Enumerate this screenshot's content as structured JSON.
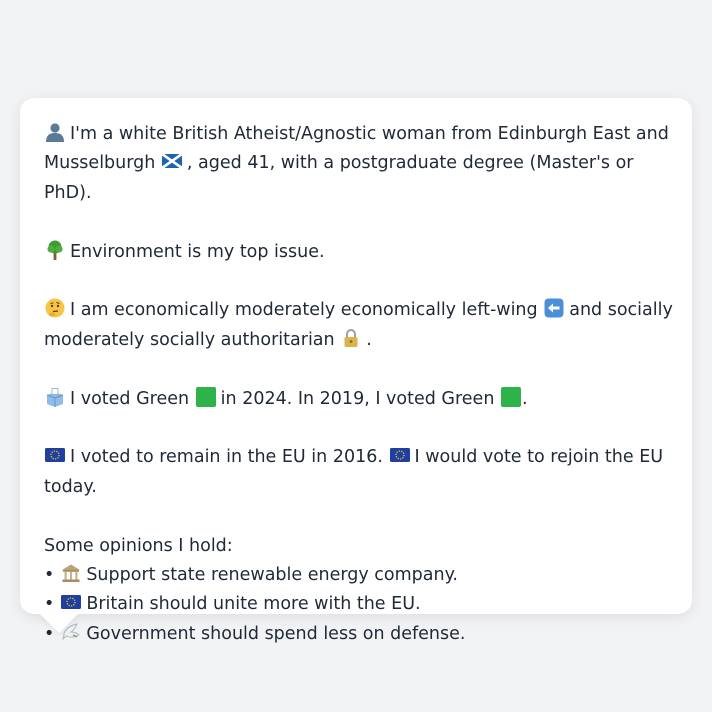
{
  "profile": {
    "identity": {
      "icon": "person-silhouette-icon",
      "text_before_flag": "I'm a white British Atheist/Agnostic woman from Edinburgh East and Musselburgh",
      "flag_icon": "scotland-flag-icon",
      "text_after_flag": ", aged 41, with a postgraduate degree (Master's or PhD)."
    },
    "top_issue": {
      "icon": "tree-icon",
      "text": "Environment is my top issue."
    },
    "ideology": {
      "icon": "thinking-face-icon",
      "text_part1": "I am economically moderately economically left-wing",
      "left_arrow_icon": "left-arrow-icon",
      "text_part2": "and socially moderately socially authoritarian",
      "lock_icon": "lock-icon",
      "text_part3": "."
    },
    "voting": {
      "icon": "ballot-box-icon",
      "text_part1": "I voted Green",
      "party_icon": "green-square-icon",
      "text_part2": "in 2024. In 2019, I voted Green",
      "text_part3": ".",
      "party_color": "#2db34a"
    },
    "eu": {
      "icon": "eu-flag-icon",
      "text_part1": "I voted to remain in the EU in 2016.",
      "text_part2": "I would vote to rejoin the EU today.",
      "eu_color": "#1f3fa3"
    },
    "opinions": {
      "heading": "Some opinions I hold:",
      "items": [
        {
          "icon": "classical-building-icon",
          "text": "Support state renewable energy company."
        },
        {
          "icon": "eu-flag-icon",
          "text": "Britain should unite more with the EU."
        },
        {
          "icon": "dove-icon",
          "text": "Government should spend less on defense."
        }
      ]
    }
  }
}
